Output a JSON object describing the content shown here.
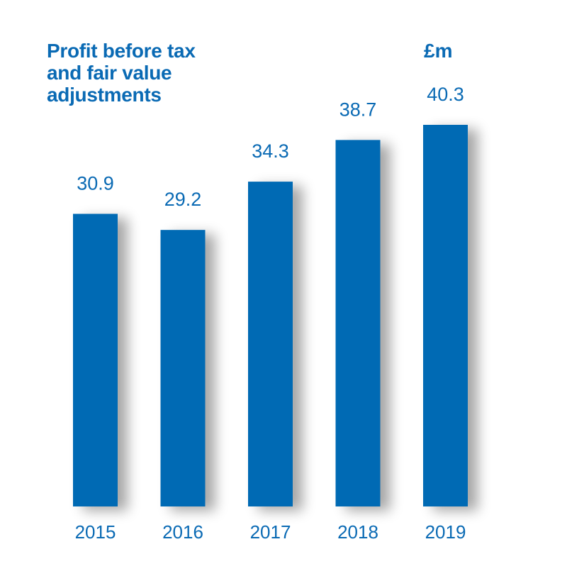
{
  "chart_data": {
    "type": "bar",
    "title": "Profit before tax\nand fair value\nadjustments",
    "unit": "£m",
    "categories": [
      "2015",
      "2016",
      "2017",
      "2018",
      "2019"
    ],
    "values": [
      30.9,
      29.2,
      34.3,
      38.7,
      40.3
    ],
    "value_labels": [
      "30.9",
      "29.2",
      "34.3",
      "38.7",
      "40.3"
    ],
    "ylim": [
      0,
      40.3
    ],
    "grid": false,
    "legend": "none",
    "colors": {
      "bar": "#006ab4",
      "text": "#0a6ab4",
      "shadow": "#9aa3ad"
    }
  }
}
